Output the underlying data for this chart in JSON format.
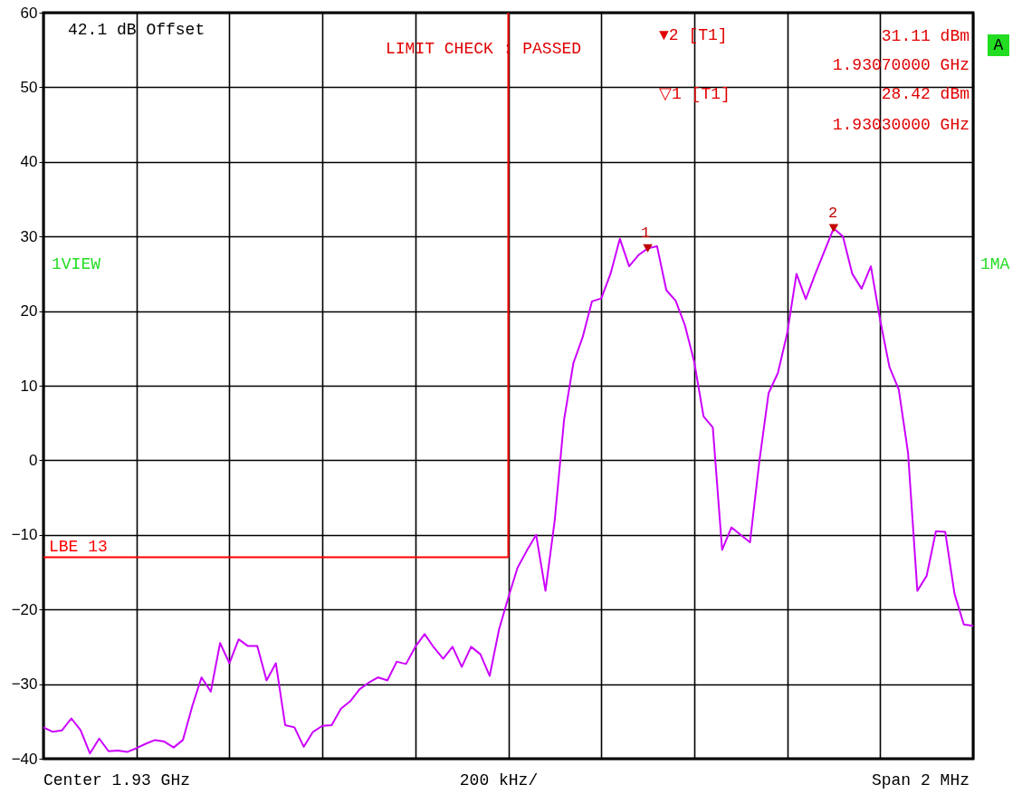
{
  "chart_data": {
    "type": "line",
    "categories": [
      null,
      null,
      null,
      null,
      null,
      null,
      null,
      null,
      null,
      null,
      null,
      null,
      null,
      null,
      null,
      null,
      null,
      null,
      null,
      null,
      null,
      null,
      null,
      null,
      null,
      null,
      null,
      null,
      null,
      null,
      null,
      null,
      null,
      null,
      null,
      null,
      null,
      null,
      null,
      null,
      null,
      null,
      null,
      null,
      null,
      null,
      null,
      null,
      null,
      null,
      null,
      null,
      null,
      null,
      null,
      null,
      null,
      null,
      null,
      null,
      null,
      null,
      null,
      null,
      null,
      null,
      null,
      null,
      null,
      null,
      null,
      null,
      null,
      null,
      null,
      null,
      null,
      null,
      null,
      null,
      null,
      null,
      null,
      null,
      null,
      null,
      null,
      null,
      null,
      null,
      null,
      null,
      null,
      null,
      null,
      null,
      null,
      null,
      null,
      null,
      null
    ],
    "ylim": [
      -40,
      60
    ],
    "yticks": [
      -40,
      -30,
      -20,
      -10,
      0,
      10,
      20,
      30,
      40,
      50,
      60
    ],
    "grid": true,
    "tick_labels": "y",
    "series": [
      {
        "color": "#cc00ff",
        "values": [
          -35.8,
          -36.4,
          -36.2,
          -34.6,
          -36.2,
          -39.3,
          -37.3,
          -39.0,
          -38.9,
          -39.1,
          -38.6,
          -38.0,
          -37.5,
          -37.7,
          -38.5,
          -37.5,
          -33.0,
          -29.1,
          -31.0,
          -24.5,
          -27.2,
          -24.0,
          -24.9,
          -24.9,
          -29.5,
          -27.2,
          -35.5,
          -35.8,
          -38.4,
          -36.4,
          -35.6,
          -35.5,
          -33.3,
          -32.3,
          -30.7,
          -29.8,
          -29.1,
          -29.5,
          -27.0,
          -27.3,
          -25.0,
          -23.3,
          -25.1,
          -26.6,
          -25.0,
          -27.7,
          -25.0,
          -26.0,
          -28.9,
          -22.7,
          -18.4,
          -14.4,
          -12.1,
          -10.0,
          -17.5,
          -8.0,
          5.4,
          13.0,
          16.5,
          21.3,
          21.7,
          25.0,
          29.7,
          26.0,
          27.5,
          28.4,
          28.7,
          22.8,
          21.4,
          18.1,
          13.2,
          5.9,
          4.4,
          -12.0,
          -9.0,
          -10.0,
          -11.0,
          -0.2,
          9.0,
          11.7,
          17.0,
          25.0,
          21.6,
          24.9,
          28.0,
          31.1,
          30.0,
          25.0,
          23.0,
          26.0,
          18.8,
          12.5,
          9.5,
          1.0,
          -17.5,
          -15.5,
          -9.5,
          -9.6,
          -17.9,
          -22.0,
          -22.2
        ]
      },
      {
        "type": "scatter",
        "marker": "triangle",
        "color": "#c00000",
        "values": [
          null,
          null,
          null,
          null,
          null,
          null,
          null,
          null,
          null,
          null,
          null,
          null,
          null,
          null,
          null,
          null,
          null,
          null,
          null,
          null,
          null,
          null,
          null,
          null,
          null,
          null,
          null,
          null,
          null,
          null,
          null,
          null,
          null,
          null,
          null,
          null,
          null,
          null,
          null,
          null,
          null,
          null,
          null,
          null,
          null,
          null,
          null,
          null,
          null,
          null,
          null,
          null,
          null,
          null,
          null,
          null,
          null,
          null,
          null,
          null,
          null,
          null,
          null,
          null,
          null,
          28.42,
          null,
          null,
          null,
          null,
          null,
          null,
          null,
          null,
          null,
          null,
          null,
          null,
          null,
          null,
          null,
          null,
          null,
          null,
          null,
          31.11,
          null,
          null,
          null,
          null,
          null,
          null,
          null,
          null,
          null,
          null,
          null,
          null,
          null,
          null,
          null
        ]
      }
    ],
    "ref_lines": [
      {
        "axis": "y",
        "value": -13,
        "label": "LBE 13",
        "color": "#ff0000"
      }
    ],
    "annotations": [
      "42.1 dB Offset",
      "LIMIT CHECK  : PASSED",
      "▼2 [T1]",
      "31.11 dBm",
      "1.93070000 GHz",
      "▽1 [T1]",
      "28.42 dBm",
      "1.93030000 GHz",
      "A",
      "1VIEW",
      "1MA",
      "Center 1.93 GHz",
      "200 kHz/",
      "Span 2 MHz",
      {
        "text": "1",
        "y": 28.42
      },
      {
        "text": "2",
        "y": 31.11
      }
    ]
  }
}
